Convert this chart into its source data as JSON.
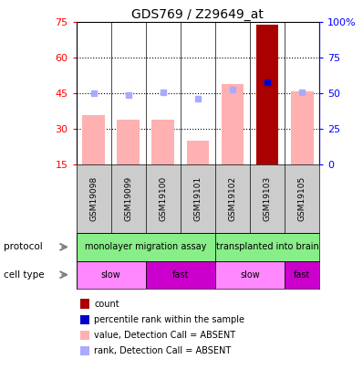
{
  "title": "GDS769 / Z29649_at",
  "samples": [
    "GSM19098",
    "GSM19099",
    "GSM19100",
    "GSM19101",
    "GSM19102",
    "GSM19103",
    "GSM19105"
  ],
  "bar_values": [
    36,
    34,
    34,
    25,
    49,
    74,
    46
  ],
  "bar_colors": [
    "#ffb0b0",
    "#ffb0b0",
    "#ffb0b0",
    "#ffb0b0",
    "#ffb0b0",
    "#aa0000",
    "#ffb0b0"
  ],
  "rank_values": [
    50,
    49,
    51,
    46,
    53,
    58,
    51
  ],
  "rank_colors": [
    "#aaaaff",
    "#aaaaff",
    "#aaaaff",
    "#aaaaff",
    "#aaaaff",
    "#0000cc",
    "#aaaaff"
  ],
  "ylim_left": [
    15,
    75
  ],
  "ylim_right": [
    0,
    100
  ],
  "yticks_left": [
    15,
    30,
    45,
    60,
    75
  ],
  "yticks_right": [
    0,
    25,
    50,
    75,
    100
  ],
  "ytick_labels_right": [
    "0",
    "25",
    "50",
    "75",
    "100%"
  ],
  "gridlines": [
    30,
    45,
    60
  ],
  "protocol_groups": [
    {
      "indices": [
        0,
        1,
        2,
        3
      ],
      "label": "monolayer migration assay"
    },
    {
      "indices": [
        4,
        5,
        6
      ],
      "label": "transplanted into brain"
    }
  ],
  "cell_type_groups": [
    {
      "indices": [
        0,
        1
      ],
      "label": "slow",
      "color": "#ff88ff"
    },
    {
      "indices": [
        2,
        3
      ],
      "label": "fast",
      "color": "#cc00cc"
    },
    {
      "indices": [
        4,
        5
      ],
      "label": "slow",
      "color": "#ff88ff"
    },
    {
      "indices": [
        6,
        6
      ],
      "label": "fast",
      "color": "#cc00cc"
    }
  ],
  "protocol_color": "#88ee88",
  "sample_bg_color": "#cccccc",
  "legend_items": [
    {
      "color": "#aa0000",
      "label": "count"
    },
    {
      "color": "#0000cc",
      "label": "percentile rank within the sample"
    },
    {
      "color": "#ffb0b0",
      "label": "value, Detection Call = ABSENT"
    },
    {
      "color": "#aaaaff",
      "label": "rank, Detection Call = ABSENT"
    }
  ]
}
